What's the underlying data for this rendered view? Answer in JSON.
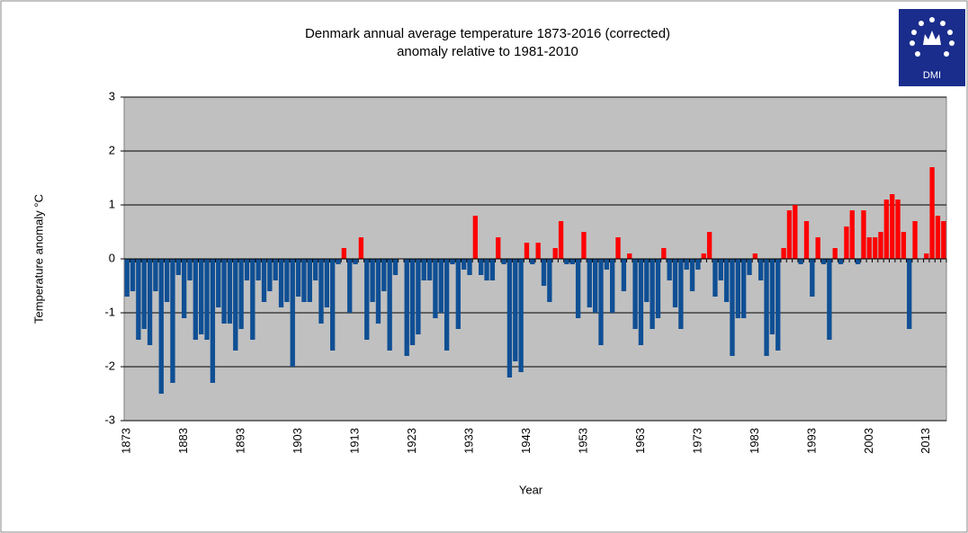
{
  "chart_data": {
    "type": "bar",
    "title": "Denmark annual average temperature 1873-2016 (corrected)",
    "subtitle": "anomaly relative to 1981-2010",
    "ylabel": "Temperature anomaly °C",
    "xlabel": "Year",
    "logo": "DMI",
    "x": [
      1873,
      1874,
      1875,
      1876,
      1877,
      1878,
      1879,
      1880,
      1881,
      1882,
      1883,
      1884,
      1885,
      1886,
      1887,
      1888,
      1889,
      1890,
      1891,
      1892,
      1893,
      1894,
      1895,
      1896,
      1897,
      1898,
      1899,
      1900,
      1901,
      1902,
      1903,
      1904,
      1905,
      1906,
      1907,
      1908,
      1909,
      1910,
      1911,
      1912,
      1913,
      1914,
      1915,
      1916,
      1917,
      1918,
      1919,
      1920,
      1921,
      1922,
      1923,
      1924,
      1925,
      1926,
      1927,
      1928,
      1929,
      1930,
      1931,
      1932,
      1933,
      1934,
      1935,
      1936,
      1937,
      1938,
      1939,
      1940,
      1941,
      1942,
      1943,
      1944,
      1945,
      1946,
      1947,
      1948,
      1949,
      1950,
      1951,
      1952,
      1953,
      1954,
      1955,
      1956,
      1957,
      1958,
      1959,
      1960,
      1961,
      1962,
      1963,
      1964,
      1965,
      1966,
      1967,
      1968,
      1969,
      1970,
      1971,
      1972,
      1973,
      1974,
      1975,
      1976,
      1977,
      1978,
      1979,
      1980,
      1981,
      1982,
      1983,
      1984,
      1985,
      1986,
      1987,
      1988,
      1989,
      1990,
      1991,
      1992,
      1993,
      1994,
      1995,
      1996,
      1997,
      1998,
      1999,
      2000,
      2001,
      2002,
      2003,
      2004,
      2005,
      2006,
      2007,
      2008,
      2009,
      2010,
      2011,
      2012,
      2013,
      2014,
      2015,
      2016
    ],
    "values": [
      -0.7,
      -0.6,
      -1.5,
      -1.3,
      -1.6,
      -0.6,
      -2.5,
      -0.8,
      -2.3,
      -0.3,
      -1.1,
      -0.4,
      -1.5,
      -1.4,
      -1.5,
      -2.3,
      -0.9,
      -1.2,
      -1.2,
      -1.7,
      -1.3,
      -0.4,
      -1.5,
      -0.4,
      -0.8,
      -0.6,
      -0.4,
      -0.9,
      -0.8,
      -2.0,
      -0.7,
      -0.8,
      -0.8,
      -0.4,
      -1.2,
      -0.9,
      -1.7,
      -0.1,
      0.2,
      -1.0,
      -0.1,
      0.4,
      -1.5,
      -0.8,
      -1.2,
      -0.6,
      -1.7,
      -0.3,
      0,
      -1.8,
      -1.6,
      -1.4,
      -0.4,
      -0.4,
      -1.1,
      -1.0,
      -1.7,
      -0.1,
      -1.3,
      -0.2,
      -0.3,
      0.8,
      -0.3,
      -0.4,
      -0.4,
      0.4,
      -0.1,
      -2.2,
      -1.9,
      -2.1,
      0.3,
      -0.1,
      0.3,
      -0.5,
      -0.8,
      0.2,
      0.7,
      -0.1,
      -0.1,
      -1.1,
      0.5,
      -0.9,
      -1.0,
      -1.6,
      -0.2,
      -1.0,
      0.4,
      -0.6,
      0.1,
      -1.3,
      -1.6,
      -0.8,
      -1.3,
      -1.1,
      0.2,
      -0.4,
      -0.9,
      -1.3,
      -0.2,
      -0.6,
      -0.2,
      0.1,
      0.5,
      -0.7,
      -0.4,
      -0.8,
      -1.8,
      -1.1,
      -1.1,
      -0.3,
      0.1,
      -0.4,
      -1.8,
      -1.4,
      -1.7,
      0.2,
      0.9,
      1.0,
      -0.1,
      0.7,
      -0.7,
      0.4,
      -0.1,
      -1.5,
      0.2,
      -0.1,
      0.6,
      0.9,
      -0.1,
      0.9,
      0.4,
      0.4,
      0.5,
      1.1,
      1.2,
      1.1,
      0.5,
      -1.3,
      0.7,
      0.0,
      0.1,
      1.7,
      0.8,
      0.7
    ],
    "colors": {
      "positive": "#ff0000",
      "negative": "#0f4f94"
    },
    "xlim": [
      1872.5,
      2016.5
    ],
    "xticks": [
      1873,
      1883,
      1893,
      1903,
      1913,
      1923,
      1933,
      1943,
      1953,
      1963,
      1973,
      1983,
      1993,
      2003,
      2013
    ],
    "ylim": [
      -3,
      3
    ],
    "yticks": [
      -3,
      -2,
      -1,
      0,
      1,
      2,
      3
    ],
    "grid": true
  }
}
